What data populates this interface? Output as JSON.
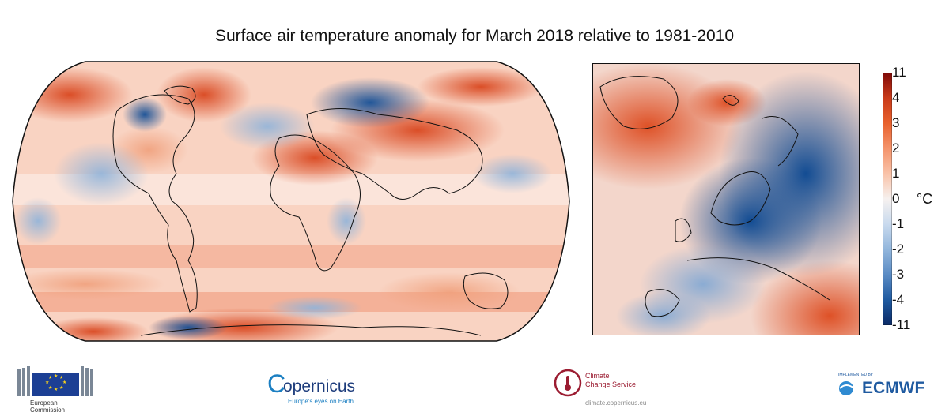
{
  "title": "Surface air temperature anomaly for March 2018 relative to 1981-2010",
  "colorbar": {
    "unit": "°C",
    "labels": [
      "11",
      "4",
      "3",
      "2",
      "1",
      "0",
      "-1",
      "-2",
      "-3",
      "-4",
      "-11"
    ],
    "colors": [
      "#7f0a08",
      "#c93a1a",
      "#e8612d",
      "#f4936b",
      "#f9c2a8",
      "#f6f1ef",
      "#c9daee",
      "#92b6dc",
      "#5a8bc4",
      "#1f5aa0",
      "#0b2a66"
    ]
  },
  "maps": {
    "global": "world-map-robinson",
    "regional": "europe-regional-map"
  },
  "logos": {
    "eu": {
      "line1": "European",
      "line2": "Commission"
    },
    "copernicus": {
      "name": "opernicus",
      "initial": "C",
      "tagline": "Europe's eyes on Earth"
    },
    "c3s": {
      "line1": "Climate",
      "line2": "Change Service",
      "url": "climate.copernicus.eu"
    },
    "ecmwf": {
      "implemented": "IMPLEMENTED BY",
      "name": "ECMWF"
    }
  }
}
